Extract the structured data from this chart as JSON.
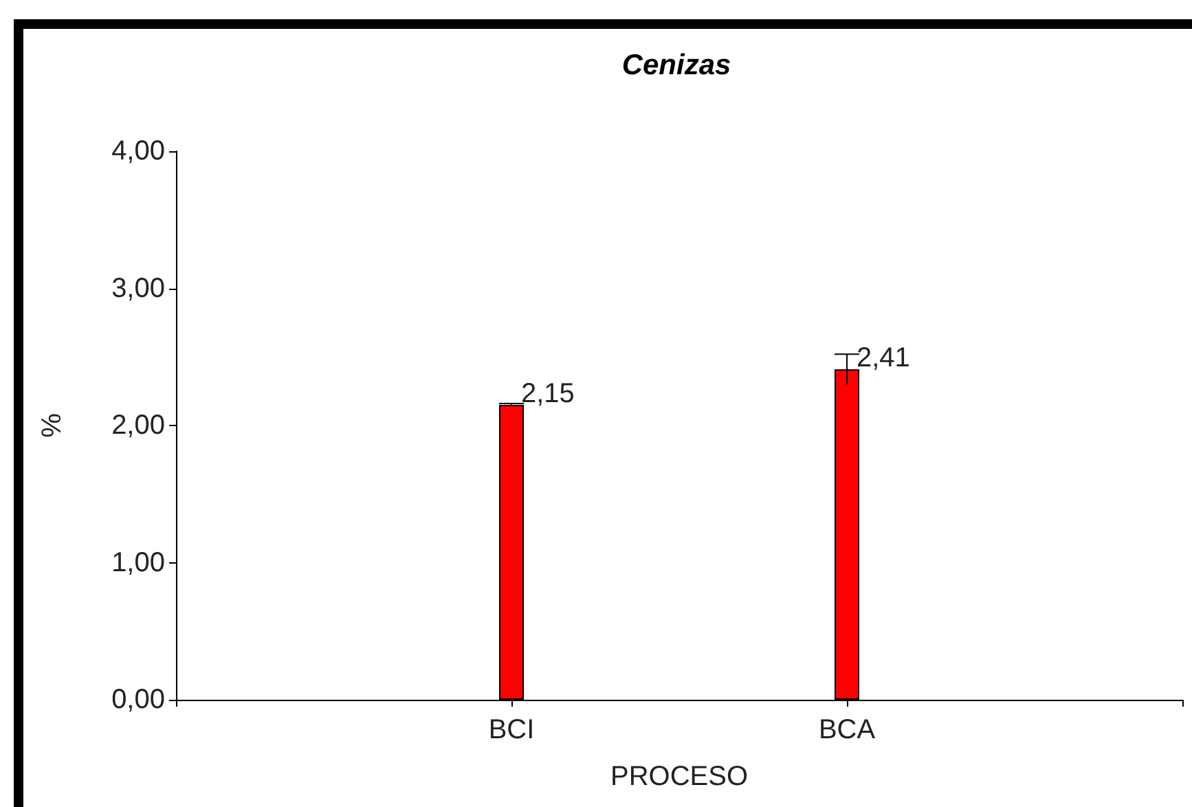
{
  "chart_data": {
    "type": "bar",
    "title": "Cenizas",
    "xlabel": "PROCESO",
    "ylabel": "%",
    "categories": [
      "BCI",
      "BCA"
    ],
    "values": [
      2.15,
      2.41
    ],
    "errors": [
      0.01,
      0.11
    ],
    "color": "#ff0000",
    "value_labels": [
      "2,15",
      "2,41"
    ],
    "ylim": [
      0,
      4
    ],
    "yticks": [
      {
        "value": 0,
        "label": "0,00"
      },
      {
        "value": 1,
        "label": "1,00"
      },
      {
        "value": 2,
        "label": "2,00"
      },
      {
        "value": 3,
        "label": "3,00"
      },
      {
        "value": 4,
        "label": "4,00"
      }
    ],
    "grid": false
  }
}
